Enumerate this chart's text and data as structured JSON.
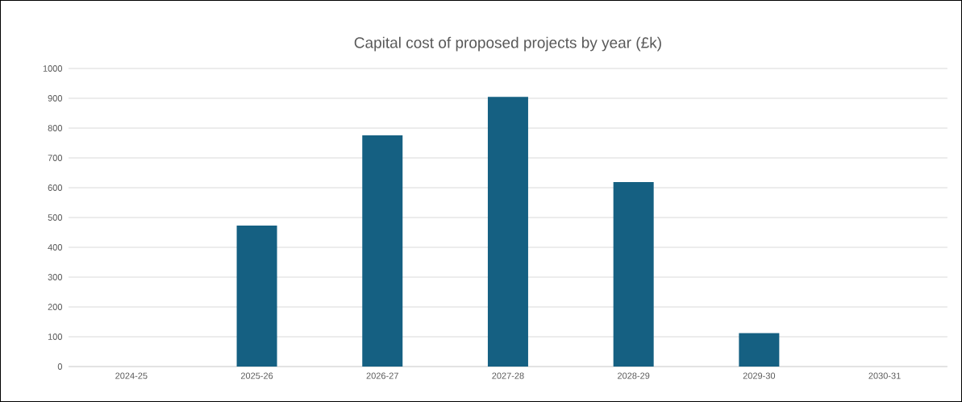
{
  "chart_data": {
    "type": "bar",
    "title": "Capital cost of proposed projects by year (£k)",
    "categories": [
      "2024-25",
      "2025-26",
      "2026-27",
      "2027-28",
      "2028-29",
      "2029-30",
      "2030-31"
    ],
    "values": [
      0,
      473,
      776,
      905,
      619,
      112,
      0
    ],
    "color": "#156082",
    "ylim": [
      0,
      1000
    ],
    "yticks": [
      0,
      100,
      200,
      300,
      400,
      500,
      600,
      700,
      800,
      900,
      1000
    ],
    "grid": "y"
  }
}
